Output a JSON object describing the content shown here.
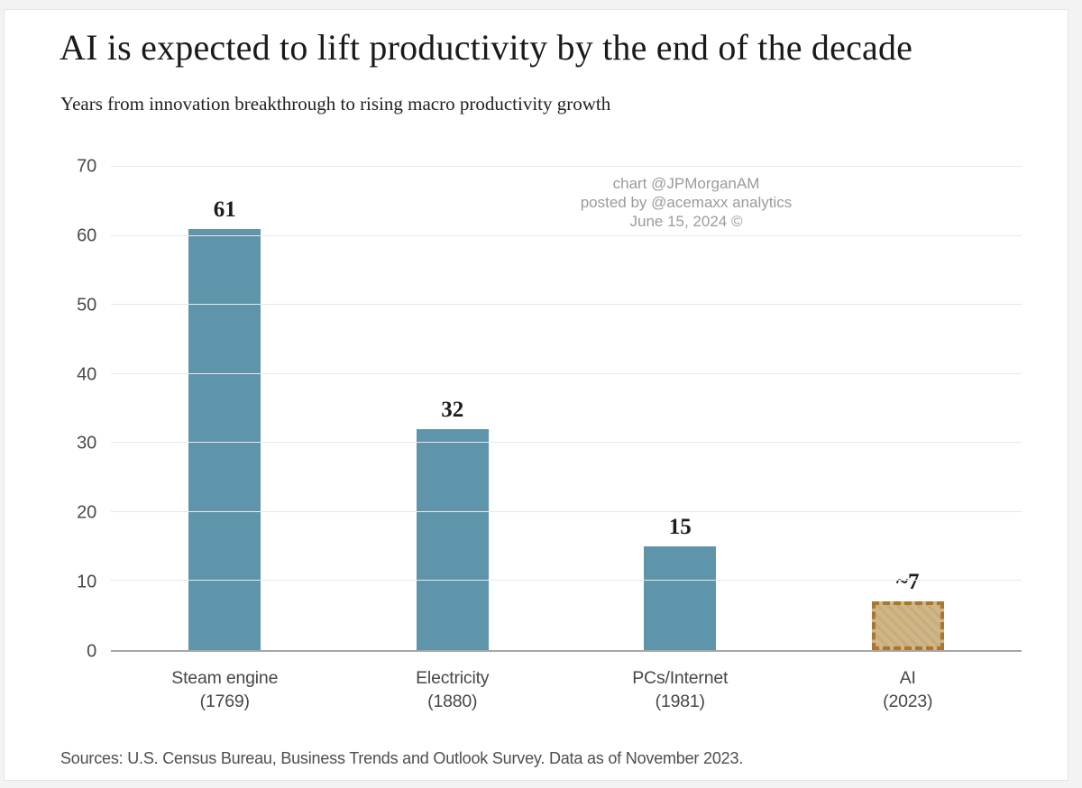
{
  "page": {
    "title": "AI is expected to lift productivity by the end of the decade",
    "subtitle": "Years from innovation breakthrough to rising macro productivity growth",
    "source_note": "Sources: U.S. Census Bureau, Business Trends and Outlook Survey. Data as of November 2023.",
    "watermark": {
      "line1": "chart @JPMorganAM",
      "line2": "posted by @acemaxx analytics",
      "line3": "June 15, 2024 ©"
    }
  },
  "chart_data": {
    "type": "bar",
    "title": "AI is expected to lift productivity by the end of the decade",
    "subtitle": "Years from innovation breakthrough to rising macro productivity growth",
    "categories": [
      {
        "name": "Steam engine",
        "year": "(1769)"
      },
      {
        "name": "Electricity",
        "year": "(1880)"
      },
      {
        "name": "PCs/Internet",
        "year": "(1981)"
      },
      {
        "name": "AI",
        "year": "(2023)"
      }
    ],
    "values": [
      61,
      32,
      15,
      7
    ],
    "value_labels": [
      "61",
      "32",
      "15",
      "~7"
    ],
    "ylim": [
      0,
      70
    ],
    "yticks": [
      0,
      10,
      20,
      30,
      40,
      50,
      60,
      70
    ],
    "grid": true,
    "legend": "none",
    "highlight_index": 3,
    "colors": {
      "bar": "#5e95aa",
      "highlight_fill": "#cdb687",
      "highlight_border": "#ad752e",
      "gridline": "#e8e8e8",
      "baseline": "#a6a6a6"
    }
  }
}
